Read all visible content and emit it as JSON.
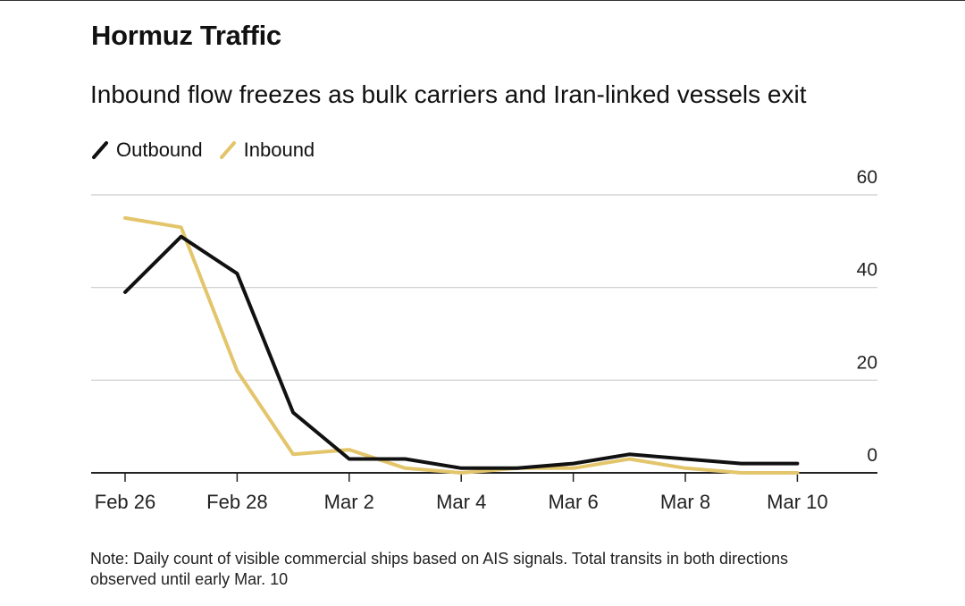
{
  "header": {
    "title": "Hormuz Traffic",
    "subtitle": "Inbound flow freezes as bulk carriers and Iran-linked vessels exit"
  },
  "note": "Note: Daily count of visible commercial ships based on AIS signals. Total transits in both directions observed until early Mar. 10",
  "colors": {
    "outbound": "#111111",
    "inbound": "#E3C56B",
    "grid": "#cccccc",
    "axis": "#222222"
  },
  "chart_data": {
    "type": "line",
    "title": "Hormuz Traffic",
    "subtitle": "Inbound flow freezes as bulk carriers and Iran-linked vessels exit",
    "xlabel": "",
    "ylabel": "",
    "x": [
      "Feb 26",
      "Feb 27",
      "Feb 28",
      "Mar 1",
      "Mar 2",
      "Mar 3",
      "Mar 4",
      "Mar 5",
      "Mar 6",
      "Mar 7",
      "Mar 8",
      "Mar 9",
      "Mar 10"
    ],
    "x_tick_labels": [
      "Feb 26",
      "Feb 28",
      "Mar 2",
      "Mar 4",
      "Mar 6",
      "Mar 8",
      "Mar 10"
    ],
    "y_ticks": [
      0,
      20,
      40,
      60
    ],
    "ylim": [
      0,
      60
    ],
    "y_axis_side": "right",
    "grid": true,
    "legend_position": "top-left",
    "series": [
      {
        "name": "Outbound",
        "values": [
          39,
          51,
          43,
          13,
          3,
          3,
          1,
          1,
          2,
          4,
          3,
          2,
          2
        ]
      },
      {
        "name": "Inbound",
        "values": [
          55,
          53,
          22,
          4,
          5,
          1,
          0,
          1,
          1,
          3,
          1,
          0,
          0
        ]
      }
    ]
  }
}
